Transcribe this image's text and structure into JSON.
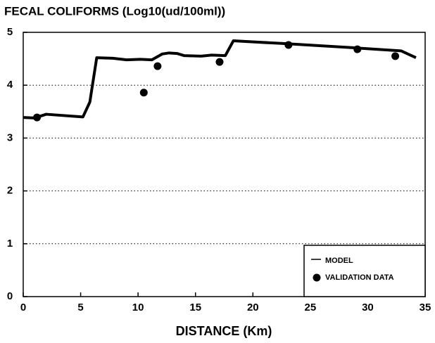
{
  "chart_data": {
    "type": "line",
    "title": "FECAL COLIFORMS   (Log10(ud/100ml))",
    "x_label": "DISTANCE  (Km)",
    "series": [
      {
        "name": "MODEL",
        "color": "#000000",
        "kind": "line",
        "x": [
          0,
          1.0,
          2.0,
          5.2,
          5.8,
          6.4,
          7.8,
          9.0,
          10.2,
          11.2,
          12.1,
          12.7,
          13.4,
          14.0,
          15.5,
          16.4,
          17.6,
          18.3,
          19.1,
          22.5,
          28.6,
          32.9,
          34.2
        ],
        "values": [
          3.39,
          3.38,
          3.45,
          3.4,
          3.68,
          4.52,
          4.51,
          4.48,
          4.49,
          4.48,
          4.59,
          4.61,
          4.6,
          4.56,
          4.55,
          4.57,
          4.56,
          4.84,
          4.83,
          4.79,
          4.71,
          4.65,
          4.52
        ]
      },
      {
        "name": "VALIDATION DATA",
        "color": "#000000",
        "kind": "scatter",
        "x": [
          1.2,
          10.5,
          11.7,
          17.1,
          23.1,
          29.1,
          32.4
        ],
        "values": [
          3.39,
          3.86,
          4.36,
          4.44,
          4.76,
          4.68,
          4.55
        ]
      }
    ],
    "xlim": [
      0,
      35
    ],
    "xticks": [
      0,
      5,
      10,
      15,
      20,
      25,
      30,
      35
    ],
    "ylim": [
      0,
      5
    ],
    "yticks": [
      0,
      1,
      2,
      3,
      4,
      5
    ],
    "grid": true,
    "legend": "lower right"
  }
}
